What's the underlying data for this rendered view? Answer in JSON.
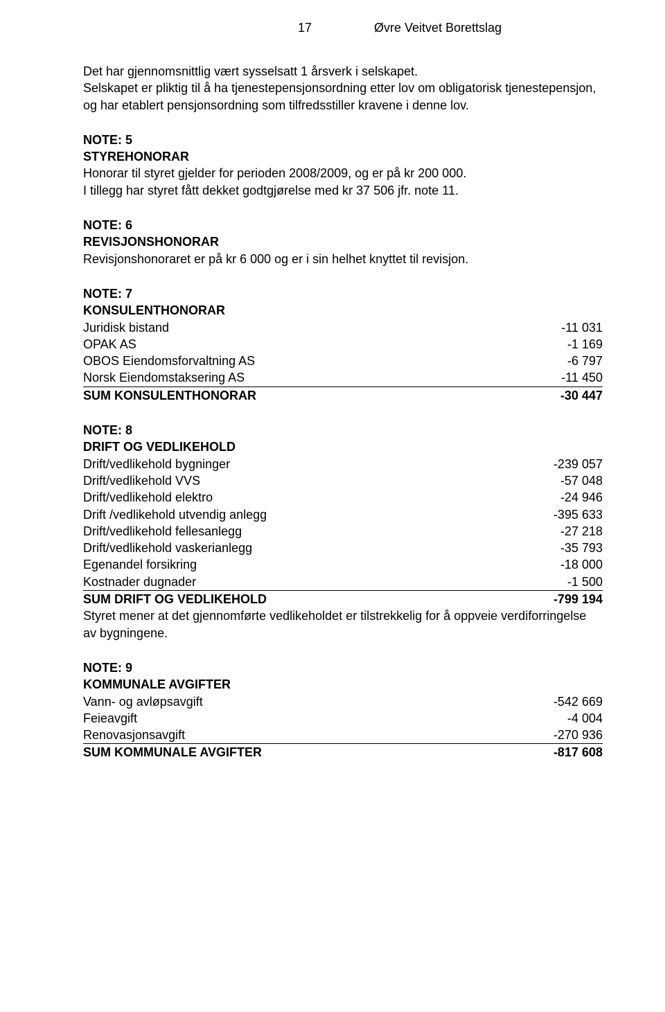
{
  "header": {
    "page_number": "17",
    "title": "Øvre Veitvet Borettslag"
  },
  "intro": {
    "p1": "Det har gjennomsnittlig vært sysselsatt 1 årsverk i selskapet.",
    "p2": "Selskapet er pliktig til å ha tjenestepensjonsordning etter lov om obligatorisk tjenestepensjon, og har etablert pensjonsordning som tilfredsstiller kravene i denne lov."
  },
  "note5": {
    "label": "NOTE: 5",
    "title": "STYREHONORAR",
    "p1": "Honorar til styret gjelder for perioden 2008/2009, og er på kr 200 000.",
    "p2": "I tillegg har styret fått dekket godtgjørelse med kr 37 506 jfr. note 11."
  },
  "note6": {
    "label": "NOTE: 6",
    "title": "REVISJONSHONORAR",
    "p1": "Revisjonshonoraret er på kr 6 000 og er i sin helhet knyttet til revisjon."
  },
  "note7": {
    "label": "NOTE: 7",
    "title": "KONSULENTHONORAR",
    "rows": [
      {
        "label": "Juridisk bistand",
        "value": "-11 031"
      },
      {
        "label": "OPAK AS",
        "value": "-1 169"
      },
      {
        "label": "OBOS Eiendomsforvaltning AS",
        "value": "-6 797"
      },
      {
        "label": "Norsk Eiendomstaksering AS",
        "value": "-11 450"
      }
    ],
    "sum_label": "SUM KONSULENTHONORAR",
    "sum_value": "-30 447"
  },
  "note8": {
    "label": "NOTE: 8",
    "title": "DRIFT OG VEDLIKEHOLD",
    "rows": [
      {
        "label": "Drift/vedlikehold bygninger",
        "value": "-239 057"
      },
      {
        "label": "Drift/vedlikehold VVS",
        "value": "-57 048"
      },
      {
        "label": "Drift/vedlikehold elektro",
        "value": "-24 946"
      },
      {
        "label": "Drift /vedlikehold utvendig anlegg",
        "value": "-395 633"
      },
      {
        "label": "Drift/vedlikehold fellesanlegg",
        "value": "-27 218"
      },
      {
        "label": "Drift/vedlikehold vaskerianlegg",
        "value": "-35 793"
      },
      {
        "label": "Egenandel forsikring",
        "value": "-18 000"
      },
      {
        "label": "Kostnader dugnader",
        "value": "-1 500"
      }
    ],
    "sum_label": "SUM DRIFT OG VEDLIKEHOLD",
    "sum_value": "-799 194",
    "footnote": "Styret mener at det gjennomførte vedlikeholdet er tilstrekkelig for å oppveie verdiforringelse av bygningene."
  },
  "note9": {
    "label": "NOTE: 9",
    "title": "KOMMUNALE AVGIFTER",
    "rows": [
      {
        "label": "Vann- og avløpsavgift",
        "value": "-542 669"
      },
      {
        "label": "Feieavgift",
        "value": "-4 004"
      },
      {
        "label": "Renovasjonsavgift",
        "value": "-270 936"
      }
    ],
    "sum_label": "SUM KOMMUNALE AVGIFTER",
    "sum_value": "-817 608"
  }
}
